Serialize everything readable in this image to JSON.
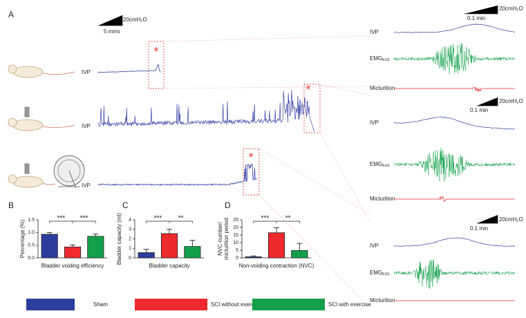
{
  "panel_labels": [
    "A",
    "B",
    "C",
    "D"
  ],
  "panel_a": {
    "scale_left": {
      "amplitude": "20cmH₂O",
      "time": "5 mins"
    },
    "trace_labels": [
      "IVP",
      "IVP",
      "IVP"
    ],
    "markers": [
      "*",
      "*",
      "*"
    ],
    "groups": [
      {
        "amplitude": "20cmH₂O",
        "time": "0.1 min",
        "ivp": "IVP",
        "emg": "EMG",
        "emg_sub": "EUS",
        "micturition": "Micturition"
      },
      {
        "amplitude": "20cmH₂O",
        "time": "0.1 min",
        "ivp": "IVP",
        "emg": "EMG",
        "emg_sub": "EUS",
        "micturition": "Micturition"
      },
      {
        "amplitude": "20cmH₂O",
        "time": "0.1 min",
        "ivp": "IVP",
        "emg": "EMG",
        "emg_sub": "EUS",
        "micturition": "Micturition"
      }
    ]
  },
  "legend": [
    {
      "name": "Sham",
      "color": "#2b3e9c"
    },
    {
      "name": "SCI without exercise",
      "color": "#ee2a2e"
    },
    {
      "name": "SCI with exercise",
      "color": "#12a14a"
    }
  ],
  "chart_data": [
    {
      "type": "bar",
      "y_label": [
        "Percentage (%)"
      ],
      "x_label": "Bladder voiding efficiency",
      "values": [
        0.93,
        0.43,
        0.85
      ],
      "errors": [
        0.07,
        0.08,
        0.09
      ],
      "ylim": [
        0,
        1.5
      ],
      "yticks": [
        {
          "value": 0,
          "label": "0.0"
        },
        0.5,
        {
          "value": 1,
          "label": "1.0"
        },
        1.5
      ],
      "significance": [
        "***",
        "***"
      ]
    },
    {
      "type": "bar",
      "y_label": [
        "Bladder capacity (ml)"
      ],
      "x_label": "Bladder capacity",
      "values": [
        0.55,
        2.55,
        1.2
      ],
      "errors": [
        0.35,
        0.45,
        0.65
      ],
      "ylim": [
        0,
        4
      ],
      "yticks": [
        0,
        1,
        2,
        3,
        4
      ],
      "significance": [
        "***",
        "**"
      ]
    },
    {
      "type": "bar",
      "y_label": [
        "NVC number/",
        "micturition period"
      ],
      "x_label": "Non-voiding contraction (NVC)",
      "values": [
        0.7,
        16.5,
        4.8
      ],
      "errors": [
        0.6,
        3.3,
        4.7
      ],
      "ylim": [
        0,
        25
      ],
      "yticks": [
        0,
        5,
        10,
        15,
        20,
        25
      ],
      "significance": [
        "***",
        "**"
      ]
    }
  ]
}
